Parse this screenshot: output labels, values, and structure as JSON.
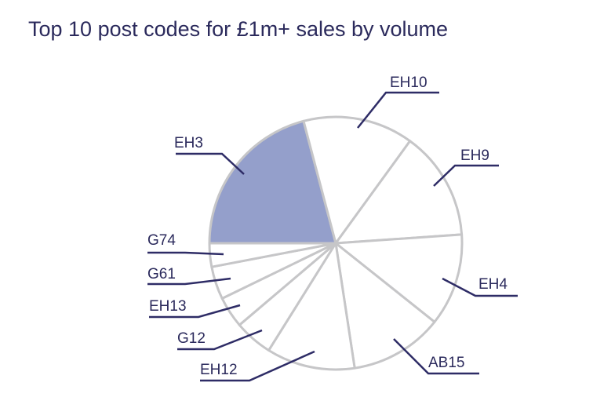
{
  "chart_data": {
    "type": "pie",
    "title": "Top 10 post codes for £1m+ sales by volume",
    "unit": "share of slices (estimated, %)",
    "categories": [
      "EH3",
      "EH10",
      "EH9",
      "EH4",
      "AB15",
      "EH12",
      "G12",
      "EH13",
      "G61",
      "G74"
    ],
    "values": [
      20.9,
      14.1,
      13.9,
      11.8,
      11.9,
      11.3,
      4.9,
      4.0,
      4.2,
      3.0
    ],
    "highlighted": "EH3",
    "colors": {
      "highlight": "#949fcb",
      "default": "#ffffff",
      "stroke": "#c6c6c8",
      "label": "#2b2a5c",
      "leader": "#2e2c66"
    }
  }
}
